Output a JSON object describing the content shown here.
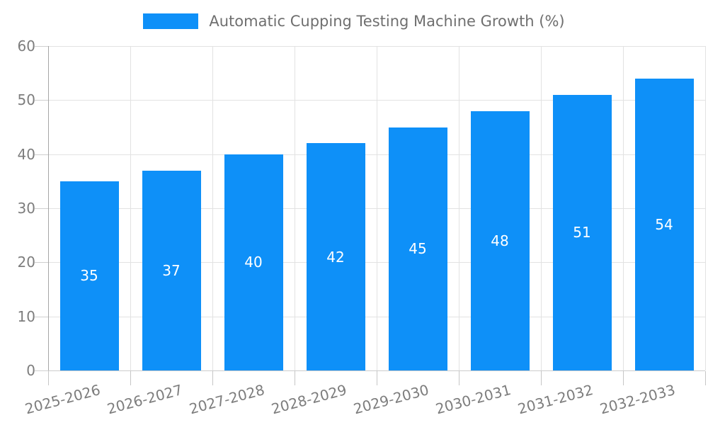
{
  "chart_data": {
    "type": "bar",
    "title": "Automatic Cupping Testing Machine Growth (%)",
    "series_name": "Automatic Cupping Testing Machine Growth (%)",
    "categories": [
      "2025-2026",
      "2026-2027",
      "2027-2028",
      "2028-2029",
      "2029-2030",
      "2030-2031",
      "2031-2032",
      "2032-2033"
    ],
    "values": [
      35,
      37,
      40,
      42,
      45,
      48,
      51,
      54
    ],
    "xlabel": "",
    "ylabel": "",
    "ylim": [
      0,
      60
    ],
    "yticks": [
      0,
      10,
      20,
      30,
      40,
      50,
      60
    ],
    "grid": true,
    "legend_position": "top-center",
    "bar_value_labels_inside": true,
    "colors": {
      "bar": "#0e90f8",
      "bar_label": "#ffffff",
      "axis_text": "#7d7d7d",
      "legend_text": "#6f6f6f",
      "gridline": "#e2e2e2",
      "axis_line": "#a6a6a6",
      "tick": "#c6c6c6",
      "background": "#ffffff"
    }
  }
}
